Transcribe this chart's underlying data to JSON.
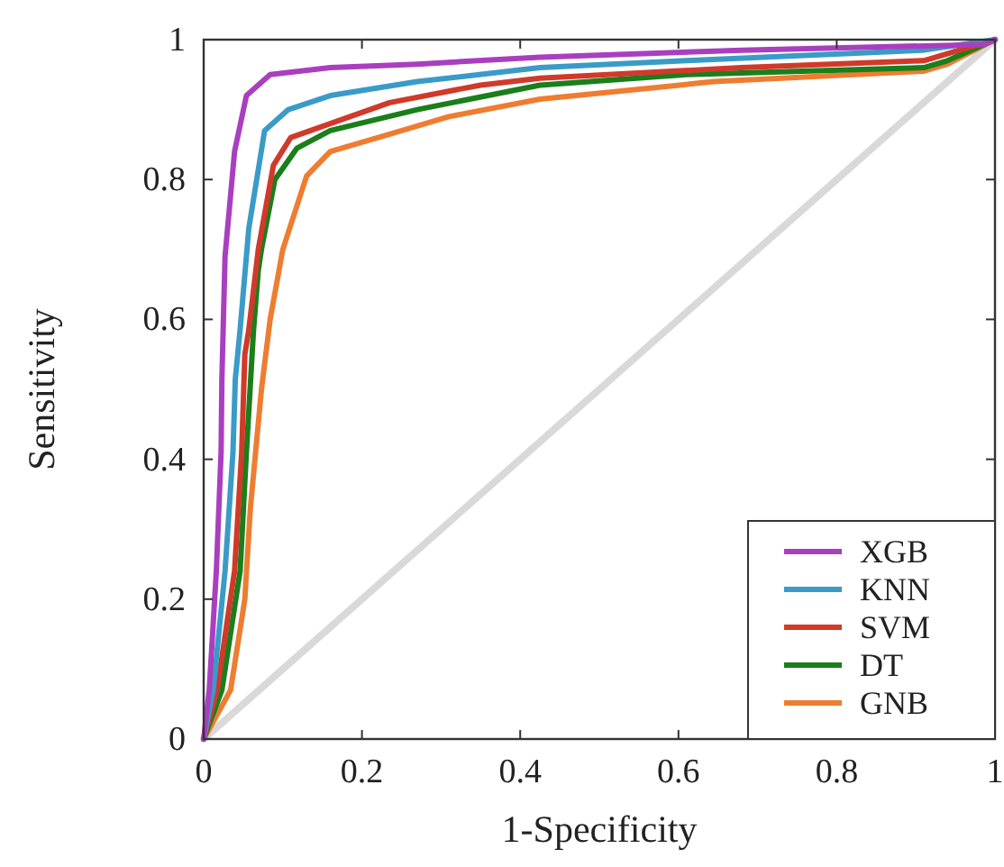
{
  "chart_data": {
    "type": "line",
    "xlabel": "1-Specificity",
    "ylabel": "Sensitivity",
    "xlim": [
      0,
      1
    ],
    "ylim": [
      0,
      1
    ],
    "xticks": [
      0,
      0.2,
      0.4,
      0.6,
      0.8,
      1
    ],
    "yticks": [
      0,
      0.2,
      0.4,
      0.6,
      0.8,
      1
    ],
    "legend": "bottom right",
    "grid": false,
    "line_style": "solid",
    "marker": "none",
    "series": [
      {
        "name": "XGB",
        "color": "#a93fbf",
        "x": [
          0,
          0.007,
          0.016,
          0.022,
          0.023,
          0.027,
          0.039,
          0.054,
          0.084,
          0.16,
          0.27,
          0.425,
          0.68,
          0.985,
          1
        ],
        "values": [
          0,
          0.07,
          0.24,
          0.41,
          0.515,
          0.69,
          0.84,
          0.92,
          0.95,
          0.96,
          0.965,
          0.975,
          0.985,
          0.993,
          1
        ]
      },
      {
        "name": "KNN",
        "color": "#3a9bc8",
        "x": [
          0,
          0.012,
          0.027,
          0.037,
          0.04,
          0.046,
          0.057,
          0.077,
          0.107,
          0.16,
          0.27,
          0.425,
          0.61,
          0.91,
          1
        ],
        "values": [
          0,
          0.07,
          0.24,
          0.41,
          0.515,
          0.585,
          0.73,
          0.87,
          0.9,
          0.92,
          0.94,
          0.96,
          0.97,
          0.985,
          1
        ]
      },
      {
        "name": "SVM",
        "color": "#d03a2a",
        "x": [
          0,
          0.017,
          0.039,
          0.048,
          0.052,
          0.057,
          0.069,
          0.088,
          0.11,
          0.16,
          0.235,
          0.35,
          0.425,
          0.68,
          0.91,
          1
        ],
        "values": [
          0,
          0.07,
          0.24,
          0.41,
          0.55,
          0.585,
          0.7,
          0.82,
          0.86,
          0.88,
          0.91,
          0.935,
          0.945,
          0.96,
          0.97,
          1
        ]
      },
      {
        "name": "DT",
        "color": "#1a7f1a",
        "x": [
          0,
          0.023,
          0.046,
          0.054,
          0.063,
          0.069,
          0.073,
          0.09,
          0.118,
          0.16,
          0.27,
          0.425,
          0.61,
          0.91,
          0.94,
          1
        ],
        "values": [
          0,
          0.07,
          0.24,
          0.41,
          0.585,
          0.67,
          0.7,
          0.8,
          0.845,
          0.87,
          0.9,
          0.935,
          0.95,
          0.96,
          0.97,
          1
        ]
      },
      {
        "name": "GNB",
        "color": "#ee7d31",
        "x": [
          0,
          0.034,
          0.052,
          0.059,
          0.073,
          0.084,
          0.1,
          0.13,
          0.16,
          0.235,
          0.31,
          0.425,
          0.645,
          0.91,
          0.94,
          1
        ],
        "values": [
          0,
          0.07,
          0.2,
          0.33,
          0.5,
          0.6,
          0.7,
          0.805,
          0.84,
          0.865,
          0.89,
          0.915,
          0.94,
          0.955,
          0.965,
          1
        ]
      },
      {
        "color": "#d9d9d9",
        "x": [
          0,
          1
        ],
        "values": [
          0,
          1
        ]
      }
    ]
  }
}
